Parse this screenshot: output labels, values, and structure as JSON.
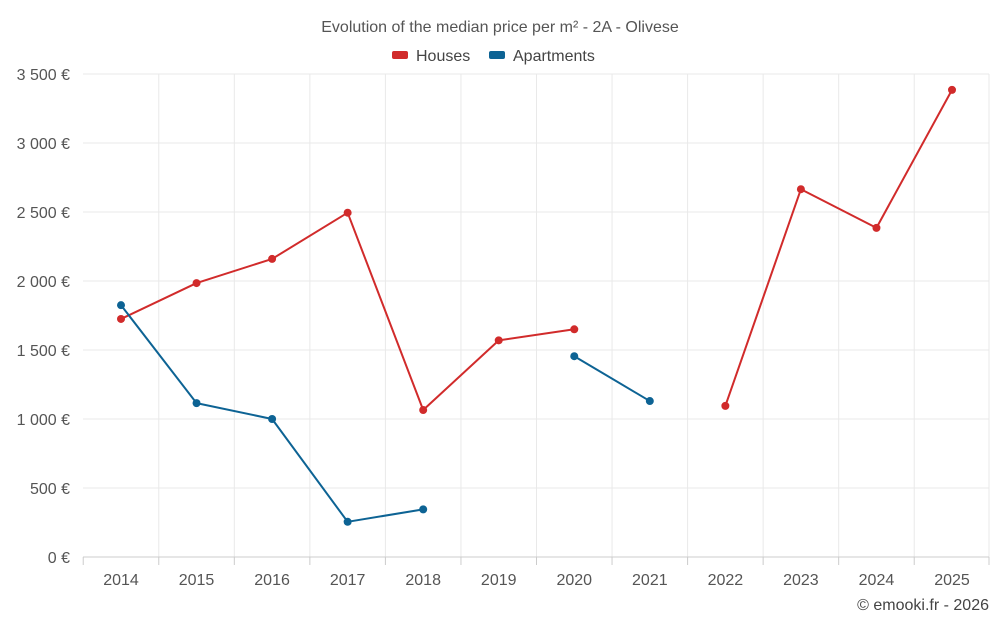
{
  "chart_data": {
    "type": "line",
    "title": "Evolution of the median price per m² - 2A - Olivese",
    "xlabel": "",
    "ylabel": "",
    "categories": [
      "2014",
      "2015",
      "2016",
      "2017",
      "2018",
      "2019",
      "2020",
      "2021",
      "2022",
      "2023",
      "2024",
      "2025"
    ],
    "ylim": [
      0,
      3500
    ],
    "yticks": [
      0,
      500,
      1000,
      1500,
      2000,
      2500,
      3000,
      3500
    ],
    "ytick_labels": [
      "0 €",
      "500 €",
      "1 000 €",
      "1 500 €",
      "2 000 €",
      "2 500 €",
      "3 000 €",
      "3 500 €"
    ],
    "grid": true,
    "legend_position": "top-center",
    "series": [
      {
        "name": "Houses",
        "color": "#d12b2b",
        "values": [
          1725,
          1985,
          2160,
          2495,
          1065,
          1570,
          1650,
          null,
          1095,
          2665,
          2385,
          3385
        ]
      },
      {
        "name": "Apartments",
        "color": "#0d6394",
        "values": [
          1825,
          1115,
          1000,
          255,
          345,
          null,
          1455,
          1130,
          null,
          null,
          null,
          null
        ]
      }
    ]
  },
  "credit": "© emooki.fr - 2026"
}
